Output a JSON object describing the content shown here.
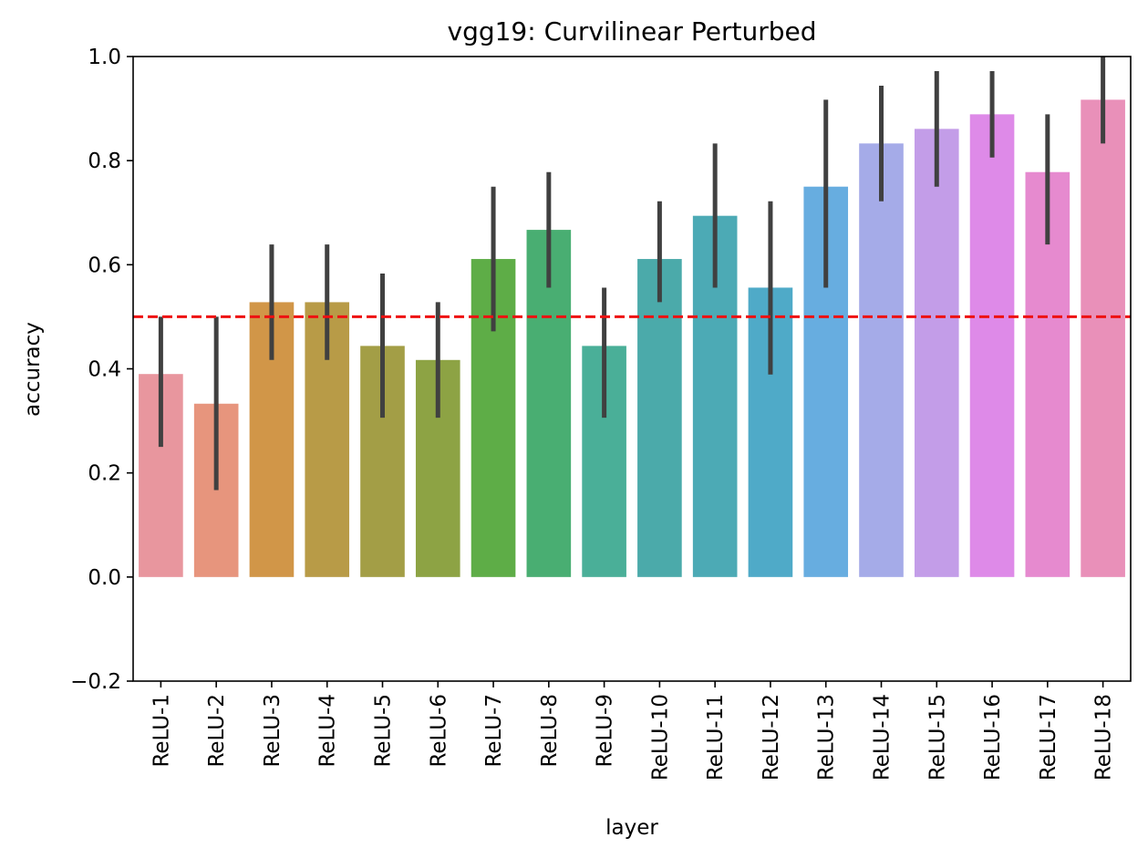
{
  "chart_data": {
    "type": "bar",
    "title": "vgg19: Curvilinear Perturbed",
    "xlabel": "layer",
    "ylabel": "accuracy",
    "ylim": [
      -0.2,
      1.0
    ],
    "yticks": [
      -0.2,
      0.0,
      0.2,
      0.4,
      0.6,
      0.8,
      1.0
    ],
    "ytick_labels": [
      "−0.2",
      "0.0",
      "0.2",
      "0.4",
      "0.6",
      "0.8",
      "1.0"
    ],
    "grid": false,
    "categories": [
      "ReLU-1",
      "ReLU-2",
      "ReLU-3",
      "ReLU-4",
      "ReLU-5",
      "ReLU-6",
      "ReLU-7",
      "ReLU-8",
      "ReLU-9",
      "ReLU-10",
      "ReLU-11",
      "ReLU-12",
      "ReLU-13",
      "ReLU-14",
      "ReLU-15",
      "ReLU-16",
      "ReLU-17",
      "ReLU-18"
    ],
    "values": [
      0.39,
      0.333,
      0.528,
      0.528,
      0.444,
      0.417,
      0.611,
      0.667,
      0.444,
      0.611,
      0.694,
      0.556,
      0.75,
      0.833,
      0.861,
      0.889,
      0.778,
      0.917
    ],
    "error_low": [
      0.25,
      0.167,
      0.417,
      0.417,
      0.306,
      0.306,
      0.472,
      0.556,
      0.306,
      0.528,
      0.556,
      0.389,
      0.556,
      0.722,
      0.75,
      0.806,
      0.639,
      0.833
    ],
    "error_high": [
      0.5,
      0.5,
      0.639,
      0.639,
      0.583,
      0.528,
      0.75,
      0.778,
      0.556,
      0.722,
      0.833,
      0.722,
      0.917,
      0.944,
      0.972,
      0.972,
      0.889,
      1.0
    ],
    "bar_colors": [
      "#E8969E",
      "#E7957D",
      "#D19648",
      "#B89B47",
      "#A39E46",
      "#8DA344",
      "#5EAD47",
      "#49AE72",
      "#4AAF98",
      "#4BAAAA",
      "#4CAAB5",
      "#4FAAC8",
      "#67ADE0",
      "#A5ABE8",
      "#C39DE8",
      "#DE8AE8",
      "#E68ACF",
      "#E990B9"
    ],
    "error_bar_color": "#404040",
    "reference_line": {
      "y": 0.5,
      "style": "dashed",
      "color": "#EE1111"
    }
  }
}
